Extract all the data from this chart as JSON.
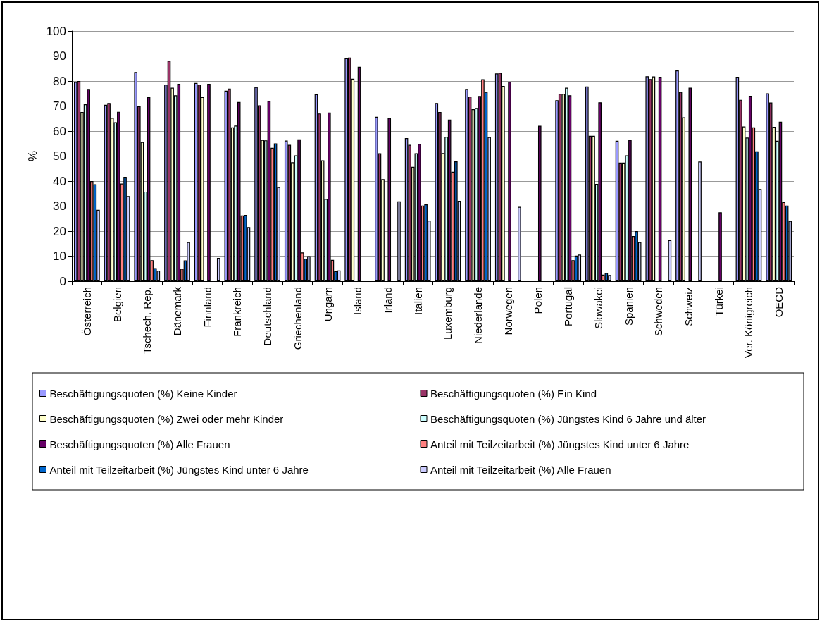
{
  "chart_data": {
    "type": "bar",
    "ylabel": "%",
    "categories": [
      "Österreich",
      "Belgien",
      "Tschech. Rep.",
      "Dänemark",
      "Finnland",
      "Frankreich",
      "Deutschland",
      "Griechenland",
      "Ungarn",
      "Island",
      "Irland",
      "Italien",
      "Luxemburg",
      "Niederlande",
      "Norwegen",
      "Polen",
      "Portugal",
      "Slowakei",
      "Spanien",
      "Schweden",
      "Schweiz",
      "Türkei",
      "Ver. Königreich",
      "OECD"
    ],
    "series": [
      {
        "name": "Beschäftigungsquoten (%) Keine Kinder",
        "color": "#9999ff",
        "values": [
          79.6,
          70.5,
          83.6,
          78.6,
          79.2,
          76.1,
          77.6,
          56.2,
          74.7,
          89.1,
          65.7,
          57.2,
          71.2,
          76.8,
          83.0,
          null,
          72.3,
          77.8,
          56.1,
          81.9,
          84.2,
          null,
          81.7,
          75.1
        ]
      },
      {
        "name": "Beschäftigungsquoten (%) Ein Kind",
        "color": "#993366",
        "values": [
          80.0,
          71.2,
          69.9,
          88.1,
          78.6,
          77.0,
          70.3,
          54.5,
          67.0,
          89.4,
          51.1,
          54.5,
          67.6,
          73.8,
          83.3,
          null,
          74.9,
          58.1,
          47.4,
          80.8,
          75.6,
          null,
          72.5,
          71.4
        ]
      },
      {
        "name": "Beschäftigungsquoten (%) Zwei oder mehr Kinder",
        "color": "#ffffcc",
        "values": [
          67.6,
          65.3,
          55.6,
          77.3,
          73.6,
          61.5,
          56.5,
          47.5,
          48.3,
          80.9,
          40.8,
          45.7,
          51.2,
          68.7,
          78.0,
          null,
          74.9,
          58.1,
          47.4,
          81.8,
          65.5,
          null,
          61.8,
          61.7
        ]
      },
      {
        "name": "Beschäftigungsquoten (%) Jüngstes Kind 6 Jahre und älter",
        "color": "#ccffff",
        "values": [
          70.7,
          63.5,
          35.8,
          74.3,
          null,
          62.2,
          56.3,
          50.3,
          32.9,
          null,
          null,
          51.1,
          57.7,
          69.2,
          null,
          null,
          77.3,
          38.9,
          50.3,
          null,
          null,
          null,
          57.4,
          56.1
        ]
      },
      {
        "name": "Beschäftigungsquoten (%) Alle Frauen",
        "color": "#660066",
        "values": [
          76.8,
          67.7,
          73.6,
          78.9,
          78.9,
          71.6,
          72.0,
          56.7,
          67.4,
          85.7,
          65.2,
          54.9,
          64.6,
          74.0,
          79.7,
          62.1,
          74.3,
          71.5,
          56.5,
          81.7,
          77.3,
          27.5,
          74.1,
          63.7
        ]
      },
      {
        "name": "Anteil mit Teilzeitarbeit (%) Jüngstes Kind unter 6 Jahre",
        "color": "#ff8080",
        "values": [
          40.0,
          39.0,
          8.4,
          5.0,
          null,
          26.3,
          53.3,
          11.5,
          8.5,
          null,
          null,
          30.2,
          43.7,
          80.7,
          null,
          null,
          8.4,
          2.6,
          18.0,
          null,
          null,
          null,
          61.5,
          31.6
        ]
      },
      {
        "name": "Anteil mit Teilzeitarbeit (%) Jüngstes Kind unter 6 Jahre",
        "color": "#0066cc",
        "values": [
          38.7,
          41.7,
          5.2,
          8.3,
          null,
          26.5,
          55.1,
          9.0,
          4.0,
          null,
          null,
          30.7,
          47.9,
          75.6,
          null,
          null,
          10.2,
          3.3,
          20.0,
          null,
          null,
          null,
          51.9,
          30.2
        ]
      },
      {
        "name": "Anteil mit Teilzeitarbeit (%) Alle Frauen",
        "color": "#ccccff",
        "values": [
          28.5,
          34.0,
          4.2,
          15.6,
          9.3,
          21.6,
          37.6,
          10.0,
          4.3,
          null,
          31.9,
          24.2,
          32.1,
          57.6,
          29.7,
          null,
          10.6,
          2.5,
          15.6,
          16.4,
          47.8,
          null,
          36.8,
          24.1
        ]
      }
    ],
    "ylim": [
      0,
      100
    ],
    "yticks": [
      0,
      10,
      20,
      30,
      40,
      50,
      60,
      70,
      80,
      90,
      100
    ],
    "grid": "y",
    "legend": "bottom"
  }
}
